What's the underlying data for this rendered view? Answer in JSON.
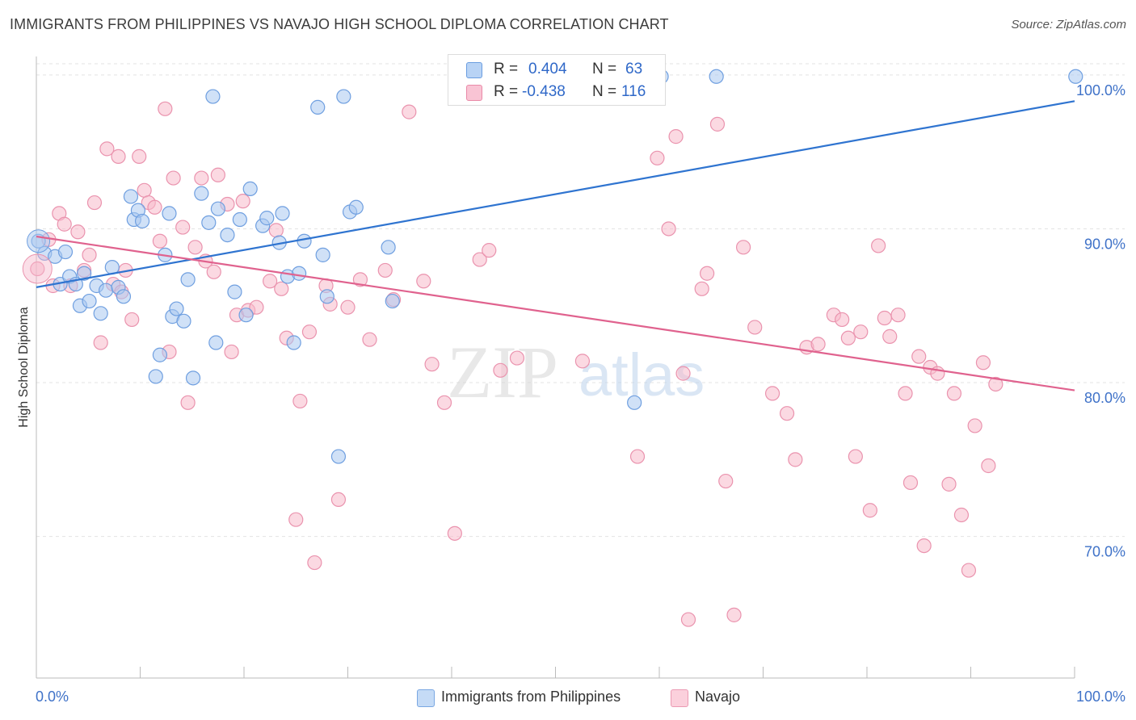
{
  "title": "IMMIGRANTS FROM PHILIPPINES VS NAVAJO HIGH SCHOOL DIPLOMA CORRELATION CHART",
  "source": "Source: ZipAtlas.com",
  "watermark": {
    "zip": "ZIP",
    "atlas": "atlas"
  },
  "stats": [
    {
      "r_label": "R =",
      "r_value": "0.404",
      "n_label": "N =",
      "n_value": "63",
      "fill": "#b8d3f5",
      "stroke": "#6a9de0"
    },
    {
      "r_label": "R =",
      "r_value": "-0.438",
      "n_label": "N =",
      "n_value": "116",
      "fill": "#f9c4d4",
      "stroke": "#e98aa8"
    }
  ],
  "legend": [
    {
      "label": "Immigrants from Philippines",
      "fill": "#c5dbf6",
      "stroke": "#7aa7e2"
    },
    {
      "label": "Navajo",
      "fill": "#fbd0dc",
      "stroke": "#eb9ab3"
    }
  ],
  "colors": {
    "blue": "#2f74d0",
    "pink": "#e0628e",
    "blue_fill": "#a9c8f0",
    "pink_fill": "#f7b9cb",
    "axis_text": "#3f72c8",
    "grid": "#e3e3e3"
  },
  "chart_data": {
    "type": "scatter",
    "title": "IMMIGRANTS FROM PHILIPPINES VS NAVAJO HIGH SCHOOL DIPLOMA CORRELATION CHART",
    "xlabel": "",
    "ylabel": "High School Diploma",
    "x_tick_labels": [
      "0.0%",
      "100.0%"
    ],
    "y_tick_labels": [
      "100.0%",
      "90.0%",
      "80.0%",
      "70.0%"
    ],
    "y_ticks": [
      100,
      90,
      80,
      70
    ],
    "xlim": [
      0,
      100
    ],
    "ylim": [
      60.8,
      101.2
    ],
    "grid": true,
    "legend_position": "bottom",
    "series": [
      {
        "name": "Immigrants from Philippines",
        "trend": {
          "x": [
            0,
            100
          ],
          "y": [
            86.2,
            98.3
          ]
        },
        "points": [
          [
            0.2,
            89.2
          ],
          [
            0.8,
            88.4
          ],
          [
            1.8,
            88.2
          ],
          [
            2.3,
            86.4
          ],
          [
            2.8,
            88.5
          ],
          [
            3.2,
            86.9
          ],
          [
            3.8,
            86.4
          ],
          [
            4.2,
            85.0
          ],
          [
            4.6,
            87.1
          ],
          [
            5.1,
            85.3
          ],
          [
            5.8,
            86.3
          ],
          [
            6.2,
            84.5
          ],
          [
            6.7,
            86.0
          ],
          [
            7.3,
            87.5
          ],
          [
            7.9,
            86.2
          ],
          [
            8.4,
            85.6
          ],
          [
            9.1,
            92.1
          ],
          [
            9.4,
            90.6
          ],
          [
            9.8,
            91.2
          ],
          [
            10.2,
            90.5
          ],
          [
            11.5,
            80.4
          ],
          [
            11.9,
            81.8
          ],
          [
            12.4,
            88.3
          ],
          [
            12.8,
            91.0
          ],
          [
            13.1,
            84.3
          ],
          [
            13.5,
            84.8
          ],
          [
            14.2,
            84.0
          ],
          [
            14.6,
            86.7
          ],
          [
            15.1,
            80.3
          ],
          [
            15.9,
            92.3
          ],
          [
            16.6,
            90.4
          ],
          [
            17.0,
            98.6
          ],
          [
            17.3,
            82.6
          ],
          [
            17.5,
            91.3
          ],
          [
            18.4,
            89.6
          ],
          [
            19.1,
            85.9
          ],
          [
            19.6,
            90.6
          ],
          [
            20.2,
            84.4
          ],
          [
            20.6,
            92.6
          ],
          [
            21.8,
            90.2
          ],
          [
            22.2,
            90.7
          ],
          [
            23.4,
            89.1
          ],
          [
            23.7,
            91.0
          ],
          [
            24.2,
            86.9
          ],
          [
            24.8,
            82.6
          ],
          [
            25.3,
            87.1
          ],
          [
            25.8,
            89.2
          ],
          [
            27.1,
            97.9
          ],
          [
            27.6,
            88.3
          ],
          [
            28.0,
            85.6
          ],
          [
            29.1,
            75.2
          ],
          [
            29.6,
            98.6
          ],
          [
            30.2,
            91.1
          ],
          [
            30.8,
            91.4
          ],
          [
            33.9,
            88.8
          ],
          [
            34.3,
            85.3
          ],
          [
            57.6,
            78.7
          ],
          [
            60.2,
            99.9
          ],
          [
            65.5,
            99.9
          ],
          [
            100.1,
            99.9
          ]
        ]
      },
      {
        "name": "Navajo",
        "trend": {
          "x": [
            0,
            100
          ],
          "y": [
            89.5,
            79.5
          ]
        },
        "points": [
          [
            0.1,
            87.4
          ],
          [
            1.2,
            89.3
          ],
          [
            1.6,
            86.3
          ],
          [
            2.2,
            91.0
          ],
          [
            2.7,
            90.3
          ],
          [
            3.3,
            86.3
          ],
          [
            4.0,
            89.8
          ],
          [
            4.6,
            87.3
          ],
          [
            5.1,
            88.3
          ],
          [
            5.6,
            91.7
          ],
          [
            6.2,
            82.6
          ],
          [
            6.8,
            95.2
          ],
          [
            7.4,
            86.4
          ],
          [
            7.9,
            94.7
          ],
          [
            8.2,
            85.9
          ],
          [
            8.6,
            87.3
          ],
          [
            9.2,
            84.1
          ],
          [
            9.9,
            94.7
          ],
          [
            10.4,
            92.5
          ],
          [
            10.8,
            91.7
          ],
          [
            11.4,
            91.4
          ],
          [
            11.9,
            89.2
          ],
          [
            12.4,
            97.8
          ],
          [
            12.8,
            82.0
          ],
          [
            13.2,
            93.3
          ],
          [
            14.1,
            90.1
          ],
          [
            14.6,
            78.7
          ],
          [
            15.3,
            88.8
          ],
          [
            15.9,
            93.3
          ],
          [
            16.3,
            87.9
          ],
          [
            17.1,
            87.2
          ],
          [
            17.5,
            93.5
          ],
          [
            18.4,
            91.6
          ],
          [
            18.8,
            82.0
          ],
          [
            19.3,
            84.4
          ],
          [
            19.9,
            91.8
          ],
          [
            20.4,
            84.7
          ],
          [
            21.2,
            84.9
          ],
          [
            22.5,
            86.6
          ],
          [
            23.1,
            89.9
          ],
          [
            23.6,
            86.1
          ],
          [
            24.1,
            82.9
          ],
          [
            25.0,
            71.1
          ],
          [
            25.4,
            78.8
          ],
          [
            26.3,
            83.3
          ],
          [
            26.8,
            68.3
          ],
          [
            27.9,
            86.3
          ],
          [
            28.3,
            85.1
          ],
          [
            29.1,
            72.4
          ],
          [
            30.0,
            84.9
          ],
          [
            31.2,
            86.7
          ],
          [
            32.1,
            82.8
          ],
          [
            33.6,
            87.3
          ],
          [
            34.4,
            85.4
          ],
          [
            35.9,
            97.6
          ],
          [
            37.3,
            86.6
          ],
          [
            38.1,
            81.2
          ],
          [
            39.3,
            78.7
          ],
          [
            40.3,
            70.2
          ],
          [
            42.7,
            88.0
          ],
          [
            43.6,
            88.6
          ],
          [
            44.7,
            80.8
          ],
          [
            46.3,
            81.6
          ],
          [
            52.6,
            81.4
          ],
          [
            53.5,
            100.0
          ],
          [
            55.2,
            100.0
          ],
          [
            56.9,
            100.0
          ],
          [
            57.9,
            75.2
          ],
          [
            59.8,
            94.6
          ],
          [
            60.9,
            90.0
          ],
          [
            61.6,
            96.0
          ],
          [
            62.3,
            80.6
          ],
          [
            62.8,
            64.6
          ],
          [
            64.1,
            86.1
          ],
          [
            64.6,
            87.1
          ],
          [
            65.6,
            96.8
          ],
          [
            66.4,
            73.6
          ],
          [
            67.2,
            64.9
          ],
          [
            68.1,
            88.8
          ],
          [
            69.2,
            83.6
          ],
          [
            70.9,
            79.3
          ],
          [
            72.3,
            78.0
          ],
          [
            73.1,
            75.0
          ],
          [
            74.2,
            82.3
          ],
          [
            75.3,
            82.5
          ],
          [
            76.8,
            84.4
          ],
          [
            77.6,
            84.1
          ],
          [
            78.2,
            82.9
          ],
          [
            78.9,
            75.2
          ],
          [
            79.4,
            83.3
          ],
          [
            80.3,
            71.7
          ],
          [
            81.1,
            88.9
          ],
          [
            81.7,
            84.2
          ],
          [
            82.2,
            83.0
          ],
          [
            83.0,
            84.4
          ],
          [
            83.7,
            79.3
          ],
          [
            84.2,
            73.5
          ],
          [
            85.0,
            81.7
          ],
          [
            85.5,
            69.4
          ],
          [
            86.1,
            81.0
          ],
          [
            86.8,
            80.6
          ],
          [
            87.9,
            73.4
          ],
          [
            88.4,
            79.3
          ],
          [
            89.1,
            71.4
          ],
          [
            89.8,
            67.8
          ],
          [
            90.4,
            77.2
          ],
          [
            91.2,
            81.3
          ],
          [
            91.7,
            74.6
          ],
          [
            92.4,
            79.9
          ]
        ]
      }
    ]
  }
}
